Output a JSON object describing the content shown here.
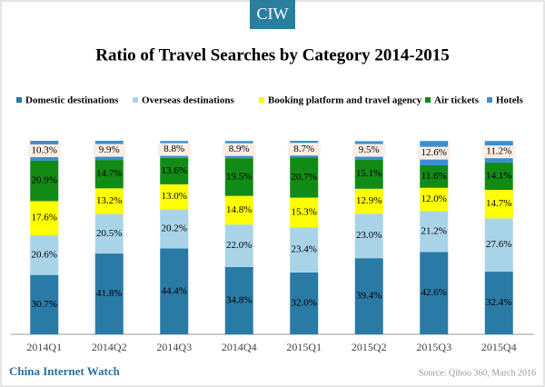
{
  "brand": "CIW",
  "footer": {
    "left": "China Internet Watch",
    "right": "Source: Qihoo 360, March 2016"
  },
  "chart_data": {
    "type": "stacked-bar",
    "title": "Ratio of Travel Searches by Category 2014-2015",
    "categories": [
      "2014Q1",
      "2014Q2",
      "2014Q3",
      "2014Q4",
      "2015Q1",
      "2015Q2",
      "2015Q3",
      "2015Q4"
    ],
    "series": [
      {
        "name": "Domestic destinations",
        "color": "#2a7aa6",
        "values": [
          30.7,
          41.8,
          44.4,
          34.8,
          32.0,
          39.4,
          42.6,
          32.4
        ],
        "value_labels": [
          "30.7%",
          "41.8%",
          "44.4%",
          "34.8%",
          "32.0%",
          "39.4%",
          "42.6%",
          "32.4%"
        ]
      },
      {
        "name": "Overseas destinations",
        "color": "#a9d4e8",
        "values": [
          20.6,
          20.5,
          20.2,
          22.0,
          23.4,
          23.0,
          21.2,
          27.6
        ],
        "value_labels": [
          "20.6%",
          "20.5%",
          "20.2%",
          "22.0%",
          "23.4%",
          "23.0%",
          "21.2%",
          "27.6%"
        ]
      },
      {
        "name": "Booking platform and travel agency",
        "color": "#ffff00",
        "values": [
          17.6,
          13.2,
          13.0,
          14.8,
          15.3,
          12.9,
          12.0,
          14.7
        ],
        "value_labels": [
          "17.6%",
          "13.2%",
          "13.0%",
          "14.8%",
          "15.3%",
          "12.9%",
          "12.0%",
          "14.7%"
        ]
      },
      {
        "name": "Air tickets",
        "color": "#128a16",
        "values": [
          20.9,
          14.7,
          13.6,
          19.5,
          20.7,
          15.1,
          11.6,
          14.1
        ],
        "value_labels": [
          "20.9%",
          "14.7%",
          "13.6%",
          "19.5%",
          "20.7%",
          "15.1%",
          "11.6%",
          "14.1%"
        ]
      },
      {
        "name": "Hotels",
        "color": "#3b8fd0",
        "values": [
          10.3,
          9.9,
          8.8,
          8.9,
          8.7,
          9.5,
          12.6,
          11.2
        ],
        "value_labels": [
          "10.3%",
          "9.9%",
          "8.8%",
          "8.9%",
          "8.7%",
          "9.5%",
          "12.6%",
          "11.2%"
        ]
      }
    ]
  }
}
